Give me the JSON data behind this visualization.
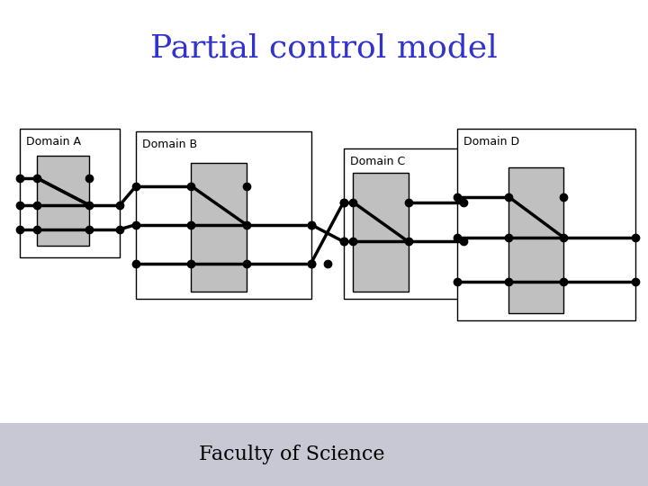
{
  "title": "Partial control model",
  "title_color": "#3333cc",
  "title_fontsize": 26,
  "title_font": "serif",
  "bg_color": "#ffffff",
  "box_color": "#c0c0c0",
  "box_edge": "#000000",
  "domain_label_fontsize": 9,
  "line_color": "#000000",
  "line_width": 2.5,
  "dot_size": 6,
  "domains": [
    {
      "name": "Domain A",
      "outer": [
        0.02,
        0.3,
        0.16,
        0.45
      ],
      "inner": [
        0.04,
        0.33,
        0.09,
        0.36
      ]
    },
    {
      "name": "Domain B",
      "outer": [
        0.18,
        0.2,
        0.33,
        0.5
      ],
      "inner": [
        0.26,
        0.24,
        0.09,
        0.36
      ]
    },
    {
      "name": "Domain C",
      "outer": [
        0.51,
        0.2,
        0.18,
        0.44
      ],
      "inner": [
        0.53,
        0.24,
        0.09,
        0.34
      ]
    },
    {
      "name": "Domain D",
      "outer": [
        0.69,
        0.15,
        0.29,
        0.55
      ],
      "inner": [
        0.79,
        0.2,
        0.09,
        0.42
      ]
    }
  ],
  "footer_bg": "#d0d0d8",
  "footer_text": "Faculty of Science",
  "footer_fontsize": 16
}
